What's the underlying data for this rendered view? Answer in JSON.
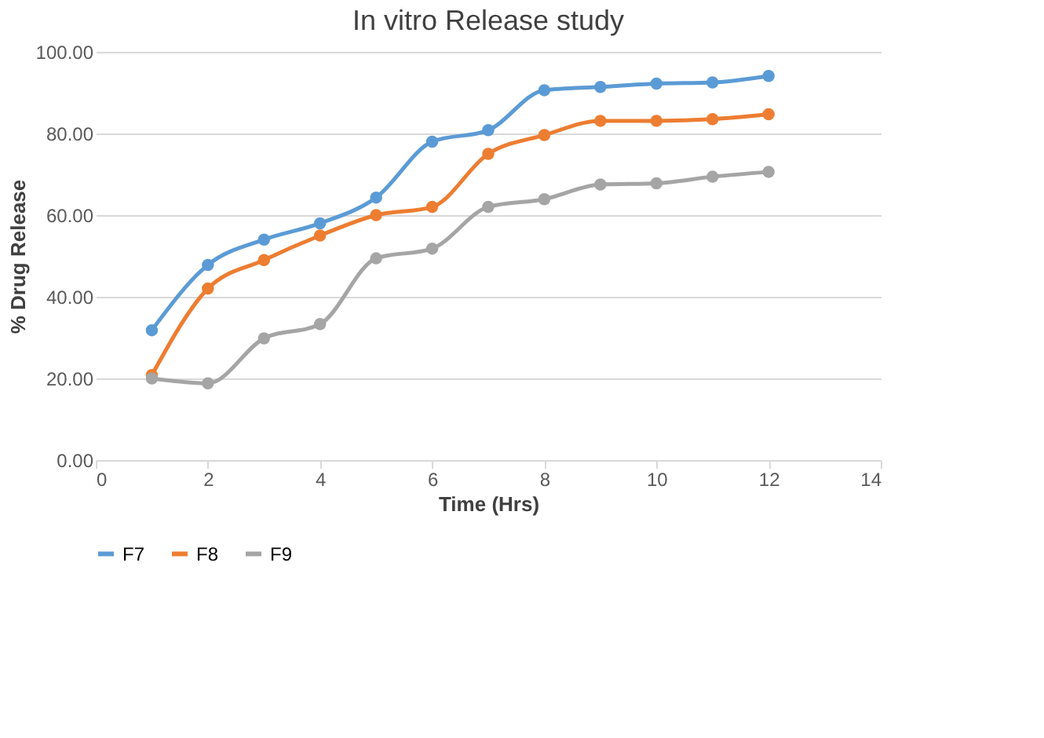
{
  "chart_data": {
    "type": "line",
    "title": "In vitro Release study",
    "xlabel": "Time (Hrs)",
    "ylabel": "% Drug Release",
    "x": [
      1,
      2,
      3,
      4,
      5,
      6,
      7,
      8,
      9,
      10,
      11,
      12
    ],
    "series": [
      {
        "name": "F7",
        "color": "#5b9bd5",
        "values": [
          31.8,
          47.8,
          54,
          58,
          64.3,
          78,
          80.8,
          90.6,
          91.4,
          92.2,
          92.5,
          94.1
        ]
      },
      {
        "name": "F8",
        "color": "#ed7d31",
        "values": [
          20.8,
          42,
          49,
          55,
          60,
          62,
          75,
          79.6,
          83.1,
          83.1,
          83.5,
          84.7
        ]
      },
      {
        "name": "F9",
        "color": "#a5a5a5",
        "values": [
          20,
          18.8,
          29.8,
          33.3,
          49.4,
          51.8,
          62,
          63.9,
          67.5,
          67.8,
          69.4,
          70.6
        ]
      }
    ],
    "xlim": [
      0,
      14
    ],
    "xticks": [
      0,
      2,
      4,
      6,
      8,
      10,
      12,
      14
    ],
    "ylim": [
      0,
      100
    ],
    "yticks": [
      {
        "value": 0,
        "label": "0.00"
      },
      {
        "value": 20,
        "label": "20.00"
      },
      {
        "value": 40,
        "label": "40.00"
      },
      {
        "value": 60,
        "label": "60.00"
      },
      {
        "value": 80,
        "label": "80.00"
      },
      {
        "value": 100,
        "label": "100.00"
      }
    ],
    "grid": "y",
    "legend": "bottom",
    "marker": "circle",
    "line_style": "solid"
  }
}
